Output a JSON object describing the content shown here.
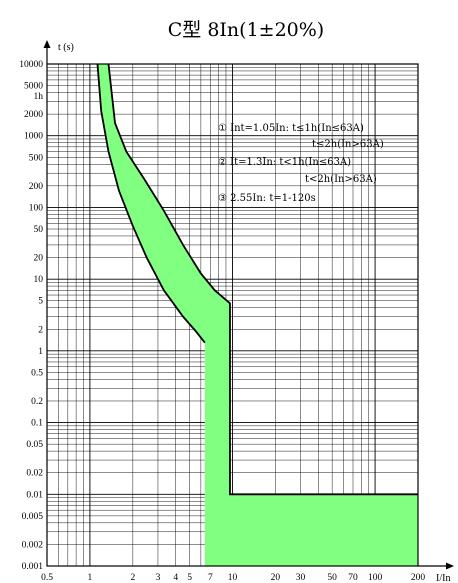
{
  "chart_data": {
    "type": "area",
    "title": "C型  8In(1±20%)",
    "xlabel": "I/In",
    "ylabel": "t (s)",
    "x_scale": "log",
    "y_scale": "log",
    "xlim": [
      0.5,
      200
    ],
    "ylim": [
      0.001,
      10000
    ],
    "grid": true,
    "x_ticks": [
      {
        "value": 0.5,
        "label": "0.5"
      },
      {
        "value": 1,
        "label": "1"
      },
      {
        "value": 2,
        "label": "2"
      },
      {
        "value": 3,
        "label": "3"
      },
      {
        "value": 4,
        "label": "4"
      },
      {
        "value": 5,
        "label": "5"
      },
      {
        "value": 7,
        "label": "7"
      },
      {
        "value": 10,
        "label": "10"
      },
      {
        "value": 20,
        "label": "20"
      },
      {
        "value": 30,
        "label": "30"
      },
      {
        "value": 50,
        "label": "50"
      },
      {
        "value": 70,
        "label": "70"
      },
      {
        "value": 100,
        "label": "100"
      },
      {
        "value": 200,
        "label": "200"
      }
    ],
    "y_ticks": [
      {
        "value": 10000,
        "label": "10000"
      },
      {
        "value": 5000,
        "label": "5000"
      },
      {
        "value": 3600,
        "label": "1h"
      },
      {
        "value": 2000,
        "label": "2000"
      },
      {
        "value": 1000,
        "label": "1000"
      },
      {
        "value": 500,
        "label": "500"
      },
      {
        "value": 200,
        "label": "200"
      },
      {
        "value": 100,
        "label": "100"
      },
      {
        "value": 50,
        "label": "50"
      },
      {
        "value": 20,
        "label": "20"
      },
      {
        "value": 10,
        "label": "10"
      },
      {
        "value": 5,
        "label": "5"
      },
      {
        "value": 2,
        "label": "2"
      },
      {
        "value": 1,
        "label": "1"
      },
      {
        "value": 0.5,
        "label": "0.5"
      },
      {
        "value": 0.2,
        "label": "0.2"
      },
      {
        "value": 0.1,
        "label": "0.1"
      },
      {
        "value": 0.05,
        "label": "0.05"
      },
      {
        "value": 0.02,
        "label": "0.02"
      },
      {
        "value": 0.01,
        "label": "0.01"
      },
      {
        "value": 0.005,
        "label": "0.005"
      },
      {
        "value": 0.002,
        "label": "0.002"
      },
      {
        "value": 0.001,
        "label": "0.001"
      }
    ],
    "band": {
      "fill_color": "#80ff80",
      "edge_color": "#000000",
      "lower_curve": [
        {
          "x": 1.13,
          "y": 10000
        },
        {
          "x": 1.2,
          "y": 2200
        },
        {
          "x": 1.35,
          "y": 600
        },
        {
          "x": 1.6,
          "y": 170
        },
        {
          "x": 2.0,
          "y": 55
        },
        {
          "x": 2.5,
          "y": 20
        },
        {
          "x": 3.3,
          "y": 7
        },
        {
          "x": 4.5,
          "y": 3
        },
        {
          "x": 5.5,
          "y": 1.9
        },
        {
          "x": 6.4,
          "y": 1.3
        },
        {
          "x": 6.4,
          "y": 0.001
        }
      ],
      "upper_curve": [
        {
          "x": 1.35,
          "y": 10000
        },
        {
          "x": 1.5,
          "y": 1500
        },
        {
          "x": 1.8,
          "y": 600
        },
        {
          "x": 2.4,
          "y": 250
        },
        {
          "x": 3.3,
          "y": 90
        },
        {
          "x": 4.5,
          "y": 30
        },
        {
          "x": 6.0,
          "y": 12
        },
        {
          "x": 7.5,
          "y": 7
        },
        {
          "x": 9.6,
          "y": 4.6
        },
        {
          "x": 9.6,
          "y": 0.01
        },
        {
          "x": 200,
          "y": 0.01
        },
        {
          "x": 200,
          "y": 0.001
        }
      ]
    },
    "annotations": [
      "① Int=1.05In: t≤1h(In≤63A)",
      "t≤2h(In>63A)",
      "② It=1.3In: t<1h(In≤63A)",
      "t<2h(In>63A)",
      "③ 2.55In:  t=1-120s"
    ]
  }
}
